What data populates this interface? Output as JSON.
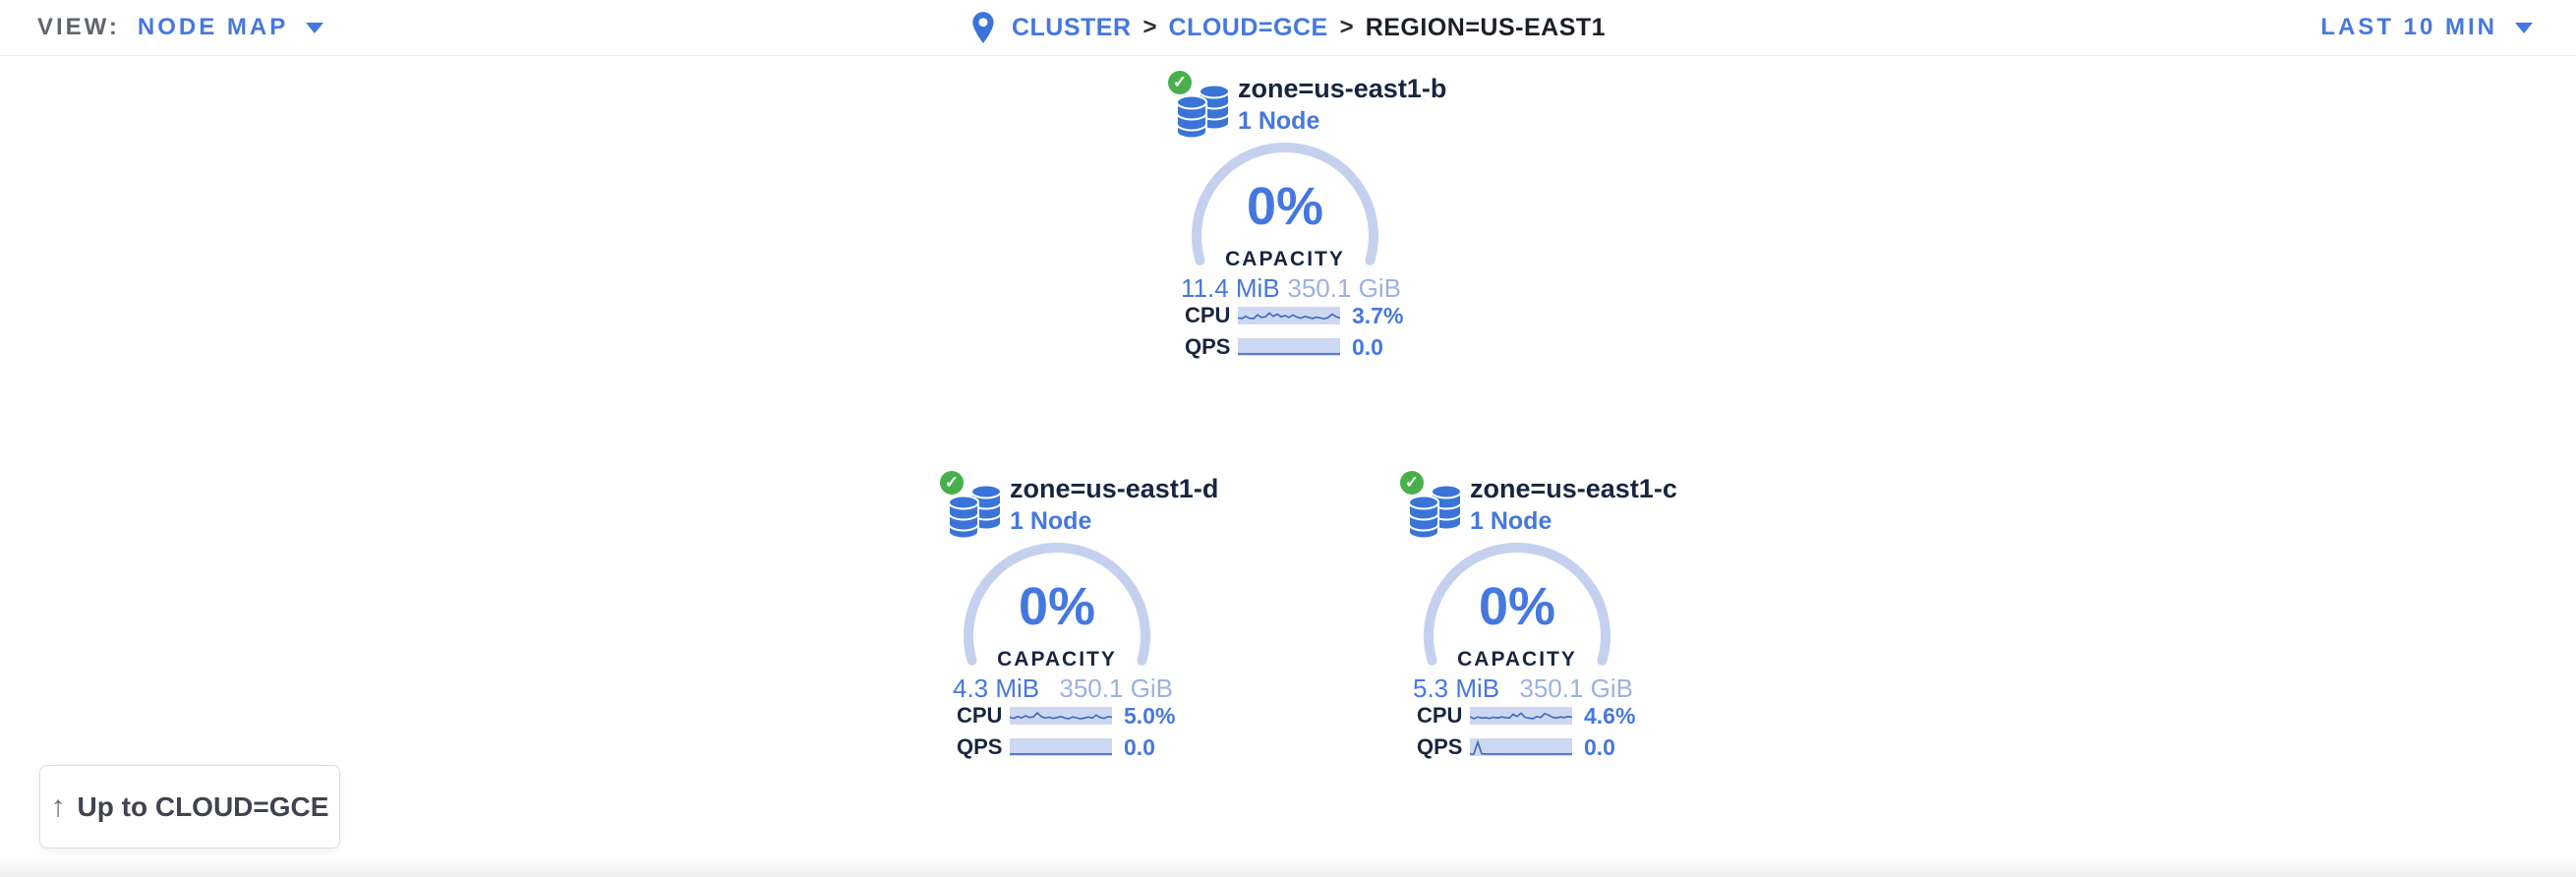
{
  "header": {
    "view_label": "VIEW:",
    "view_value": "NODE MAP",
    "separator": ">",
    "breadcrumb": [
      {
        "label": "CLUSTER"
      },
      {
        "label": "CLOUD=GCE"
      },
      {
        "label": "REGION=US-EAST1"
      }
    ],
    "time_range": "LAST 10 MIN"
  },
  "zones": [
    {
      "title": "zone=us-east1-b",
      "subtitle": "1 Node",
      "capacity_pct": "0%",
      "capacity_label": "CAPACITY",
      "used": "11.4 MiB",
      "total": "350.1 GiB",
      "cpu_label": "CPU",
      "cpu_value": "3.7%",
      "qps_label": "QPS",
      "qps_value": "0.0",
      "cpu_spark": [
        0.35,
        0.3,
        0.45,
        0.32,
        0.3,
        0.55,
        0.38,
        0.42,
        0.68,
        0.45,
        0.6,
        0.42,
        0.5,
        0.38,
        0.55,
        0.4,
        0.32,
        0.45,
        0.38,
        0.3,
        0.4,
        0.34,
        0.28,
        0.38,
        0.6,
        0.42,
        0.35
      ],
      "qps_spark": [
        0.04,
        0.04,
        0.04,
        0.04,
        0.04,
        0.04,
        0.04,
        0.04,
        0.04,
        0.04,
        0.04,
        0.04,
        0.04,
        0.04,
        0.04,
        0.04,
        0.04,
        0.04,
        0.04,
        0.04,
        0.04,
        0.04,
        0.04,
        0.04,
        0.04,
        0.04,
        0.04
      ]
    },
    {
      "title": "zone=us-east1-d",
      "subtitle": "1 Node",
      "capacity_pct": "0%",
      "capacity_label": "CAPACITY",
      "used": "4.3 MiB",
      "total": "350.1 GiB",
      "cpu_label": "CPU",
      "cpu_value": "5.0%",
      "qps_label": "QPS",
      "qps_value": "0.0",
      "cpu_spark": [
        0.4,
        0.32,
        0.45,
        0.35,
        0.5,
        0.38,
        0.42,
        0.7,
        0.45,
        0.35,
        0.4,
        0.32,
        0.38,
        0.45,
        0.35,
        0.3,
        0.42,
        0.36,
        0.3,
        0.35,
        0.42,
        0.34,
        0.55,
        0.38,
        0.32,
        0.45,
        0.4
      ],
      "qps_spark": [
        0.04,
        0.04,
        0.04,
        0.04,
        0.04,
        0.04,
        0.04,
        0.04,
        0.04,
        0.04,
        0.04,
        0.04,
        0.04,
        0.04,
        0.04,
        0.04,
        0.04,
        0.04,
        0.04,
        0.04,
        0.04,
        0.04,
        0.04,
        0.04,
        0.04,
        0.04,
        0.04
      ]
    },
    {
      "title": "zone=us-east1-c",
      "subtitle": "1 Node",
      "capacity_pct": "0%",
      "capacity_label": "CAPACITY",
      "used": "5.3 MiB",
      "total": "350.1 GiB",
      "cpu_label": "CPU",
      "cpu_value": "4.6%",
      "qps_label": "QPS",
      "qps_value": "0.0",
      "cpu_spark": [
        0.45,
        0.3,
        0.42,
        0.35,
        0.38,
        0.32,
        0.4,
        0.35,
        0.42,
        0.38,
        0.35,
        0.6,
        0.45,
        0.68,
        0.4,
        0.35,
        0.3,
        0.45,
        0.38,
        0.65,
        0.55,
        0.4,
        0.35,
        0.42,
        0.38,
        0.45,
        0.4
      ],
      "qps_spark": [
        0.04,
        0.04,
        0.85,
        0.06,
        0.04,
        0.04,
        0.04,
        0.04,
        0.04,
        0.04,
        0.04,
        0.04,
        0.04,
        0.04,
        0.04,
        0.04,
        0.04,
        0.04,
        0.04,
        0.04,
        0.04,
        0.04,
        0.04,
        0.04,
        0.04,
        0.04,
        0.04
      ]
    }
  ],
  "up_button": {
    "arrow": "↑",
    "label": "Up to CLOUD=GCE"
  },
  "colors": {
    "accent_blue": "#4577e0",
    "navy": "#17263f",
    "light_blue": "#9cb1e2",
    "arc": "#c4d0ee",
    "spark_bg": "#ccd7f1",
    "spark_line": "#3f66c2",
    "green": "#47b04b",
    "gray_text": "#60656e",
    "border": "#e8e8e8"
  }
}
